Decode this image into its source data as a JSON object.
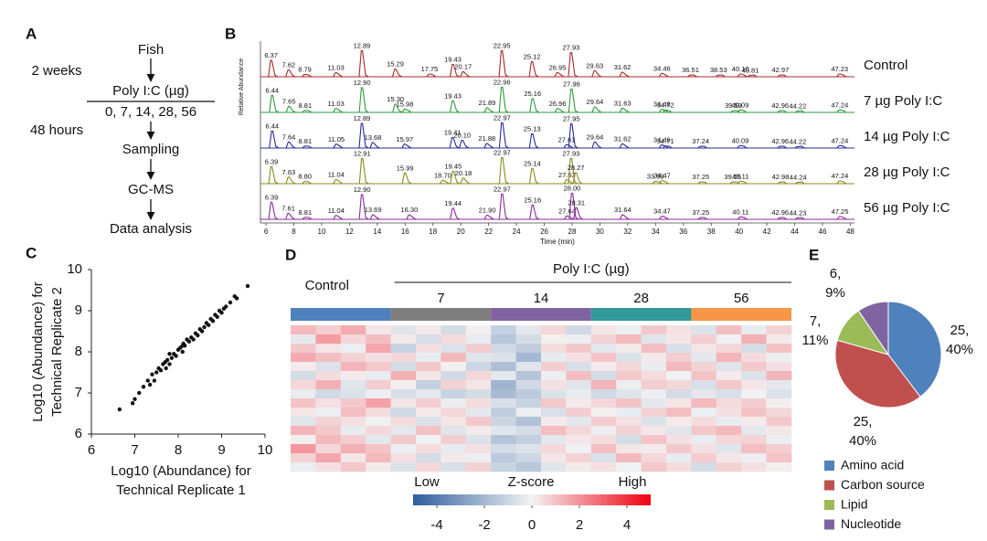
{
  "flow": {
    "panel": "A",
    "steps": [
      "Fish",
      "Poly I:C (µg)",
      "0, 7, 14, 28, 56",
      "Sampling",
      "GC-MS",
      "Data analysis"
    ],
    "durations": [
      "2 weeks",
      "48 hours"
    ]
  },
  "chart_data": [
    {
      "type": "chromatogram",
      "panel": "B",
      "xlabel": "Time (min)",
      "ylabel": "Relative Abundance",
      "xlim": [
        5.6,
        48.3
      ],
      "xticks": [
        6,
        8,
        10,
        12,
        14,
        16,
        18,
        20,
        22,
        24,
        26,
        28,
        30,
        32,
        34,
        36,
        38,
        40,
        42,
        44,
        46,
        48
      ],
      "ylim": [
        0,
        100
      ],
      "series": [
        {
          "name": "Control",
          "color": "#a8282a",
          "x": [
            6.37,
            7.62,
            8.79,
            11.03,
            12.89,
            15.29,
            17.75,
            19.43,
            20.17,
            22.95,
            25.12,
            26.95,
            27.93,
            29.63,
            31.62,
            34.46,
            36.51,
            38.53,
            40.1,
            40.81,
            42.97,
            47.23
          ],
          "x_labels": [
            "6.37",
            "7.62",
            "8.79",
            "11.03",
            "12.89",
            "15.29",
            "17.75",
            "19.43",
            "20.17",
            "22.95",
            "25.12",
            "26.95",
            "27.93",
            "29.63",
            "31.62",
            "34.46",
            "36.51",
            "38.53",
            "40.10",
            "40.81",
            "42.97",
            "47.23"
          ],
          "values": [
            60,
            25,
            8,
            15,
            95,
            28,
            10,
            45,
            18,
            95,
            55,
            15,
            88,
            22,
            16,
            12,
            6,
            6,
            10,
            5,
            6,
            10
          ]
        },
        {
          "name": "7 µg Poly I:C",
          "color": "#2e9a3e",
          "x": [
            6.44,
            7.65,
            8.81,
            11.03,
            12.9,
            15.3,
            15.98,
            19.43,
            21.89,
            22.96,
            25.16,
            26.96,
            27.96,
            29.64,
            31.63,
            34.46,
            34.72,
            39.59,
            40.09,
            42.96,
            44.22,
            47.24
          ],
          "x_labels": [
            "6.44",
            "7.65",
            "8.81",
            "11.03",
            "12.90",
            "15.30",
            "15.98",
            "19.43",
            "21.89",
            "22.96",
            "25.16",
            "26.96",
            "27.96",
            "29.64",
            "31.63",
            "34.46",
            "34.72",
            "39.59",
            "40.09",
            "42.96",
            "44.22",
            "47.24"
          ],
          "values": [
            62,
            22,
            7,
            14,
            90,
            30,
            12,
            42,
            16,
            92,
            50,
            14,
            85,
            20,
            15,
            11,
            8,
            6,
            9,
            6,
            5,
            9
          ]
        },
        {
          "name": "14 µg Poly I:C",
          "color": "#2a2a9a",
          "x": [
            6.44,
            7.64,
            8.81,
            11.05,
            12.89,
            13.68,
            15.97,
            19.41,
            20.1,
            21.88,
            22.97,
            25.13,
            27.61,
            27.95,
            29.64,
            31.62,
            34.46,
            34.71,
            37.24,
            40.09,
            42.96,
            44.22,
            47.24
          ],
          "x_labels": [
            "6.44",
            "7.64",
            "8.81",
            "11.05",
            "12.89",
            "13.68",
            "15.97",
            "19.41",
            "20.10",
            "21.88",
            "22.97",
            "25.13",
            "27.61",
            "27.95",
            "29.64",
            "31.62",
            "34.46",
            "34.71",
            "37.24",
            "40.09",
            "42.96",
            "44.22",
            "47.24"
          ],
          "values": [
            62,
            22,
            7,
            14,
            90,
            20,
            14,
            38,
            28,
            16,
            92,
            52,
            12,
            88,
            22,
            15,
            11,
            7,
            6,
            9,
            6,
            5,
            9
          ]
        },
        {
          "name": "28 µg Poly I:C",
          "color": "#8a8a1e",
          "x": [
            6.39,
            7.63,
            8.8,
            11.04,
            12.91,
            15.99,
            18.7,
            19.45,
            20.18,
            22.97,
            25.14,
            27.63,
            27.93,
            28.27,
            33.99,
            34.47,
            37.25,
            39.55,
            40.11,
            42.98,
            44.24,
            47.24
          ],
          "x_labels": [
            "6.39",
            "7.63",
            "8.80",
            "11.04",
            "12.91",
            "15.99",
            "18.70",
            "19.45",
            "20.18",
            "22.97",
            "25.14",
            "27.63",
            "27.93",
            "28.27",
            "33.99",
            "34.47",
            "37.25",
            "39.55",
            "40.11",
            "42.98",
            "44.24",
            "47.24"
          ],
          "values": [
            62,
            24,
            8,
            15,
            92,
            38,
            12,
            45,
            20,
            95,
            55,
            14,
            92,
            40,
            8,
            11,
            6,
            6,
            9,
            6,
            5,
            10
          ]
        },
        {
          "name": "56 µg Poly I:C",
          "color": "#8a2a9a",
          "x": [
            6.39,
            7.61,
            8.81,
            11.04,
            12.9,
            13.69,
            16.3,
            19.44,
            21.9,
            22.97,
            25.16,
            27.64,
            28.0,
            28.31,
            31.64,
            34.47,
            37.25,
            40.11,
            42.96,
            44.23,
            47.25
          ],
          "x_labels": [
            "6.39",
            "7.61",
            "8.81",
            "11.04",
            "12.90",
            "13.69",
            "16.30",
            "19.44",
            "21.90",
            "22.97",
            "25.16",
            "27.64",
            "28.00",
            "28.31",
            "31.64",
            "34.47",
            "37.25",
            "40.11",
            "42.96",
            "44.23",
            "47.25"
          ],
          "values": [
            62,
            22,
            7,
            14,
            90,
            16,
            16,
            40,
            15,
            92,
            52,
            12,
            95,
            42,
            16,
            11,
            6,
            9,
            6,
            5,
            10
          ]
        }
      ]
    },
    {
      "type": "scatter",
      "panel": "C",
      "xlabel": [
        "Log10 (Abundance) for",
        "Technical Replicate 1"
      ],
      "ylabel": [
        "Log10 (Abundance) for",
        "Technical Replicate 2"
      ],
      "xlim": [
        6,
        10
      ],
      "ylim": [
        6,
        10
      ],
      "xticks": [
        6,
        7,
        8,
        9,
        10
      ],
      "yticks": [
        6,
        7,
        8,
        9,
        10
      ],
      "color": "#111111",
      "x": [
        6.65,
        6.95,
        7,
        7.1,
        7.2,
        7.3,
        7.35,
        7.4,
        7.5,
        7.55,
        7.6,
        7.65,
        7.7,
        7.72,
        7.75,
        7.8,
        7.85,
        7.9,
        7.95,
        8,
        8.05,
        8.1,
        8.12,
        8.15,
        8.2,
        8.25,
        8.3,
        8.35,
        8.4,
        8.45,
        8.5,
        8.55,
        8.6,
        8.65,
        8.7,
        8.75,
        8.8,
        8.85,
        8.9,
        8.95,
        9,
        9.05,
        9.1,
        9.2,
        9.3,
        9.35,
        9.6,
        7.45,
        7.8,
        8.1
      ],
      "y": [
        6.6,
        6.75,
        6.85,
        7,
        7.15,
        7.3,
        7.2,
        7.45,
        7.5,
        7.6,
        7.55,
        7.7,
        7.75,
        7.6,
        7.8,
        7.7,
        7.85,
        7.95,
        7.9,
        8.05,
        8.1,
        8,
        8.2,
        8.15,
        8.3,
        8.25,
        8.35,
        8.3,
        8.45,
        8.4,
        8.55,
        8.5,
        8.6,
        8.7,
        8.65,
        8.8,
        8.75,
        8.9,
        8.85,
        9,
        8.95,
        9.05,
        9.1,
        9.2,
        9.35,
        9.3,
        9.6,
        7.3,
        7.95,
        8.15
      ]
    },
    {
      "type": "heatmap",
      "panel": "D",
      "group_title": "Poly I:C (µg)",
      "groups": [
        "Control",
        "7",
        "14",
        "28",
        "56"
      ],
      "group_colors": [
        "#4f81bd",
        "#7f7f7f",
        "#8064a2",
        "#31999a",
        "#f79646"
      ],
      "zlim": [
        -5,
        5
      ],
      "colors": [
        "#2e5e9e",
        "#f4f4f4",
        "#f00010"
      ],
      "colorbar": {
        "low_label": "Low",
        "title": "Z-score",
        "high_label": "High",
        "ticks": [
          -4,
          -2,
          0,
          2,
          4
        ]
      },
      "values": [
        [
          1.2,
          0.8,
          1.5,
          0.3,
          -0.5,
          0.2,
          -0.8,
          0.1,
          -1.2,
          -0.4,
          0.6,
          -0.9,
          0.3,
          -0.2,
          0.9,
          0.4,
          -0.6,
          1.1,
          -0.3,
          0.7
        ],
        [
          -0.4,
          1.8,
          0.6,
          1.1,
          0.2,
          -0.7,
          0.5,
          -0.3,
          -1.5,
          -0.8,
          0.1,
          -0.2,
          0.7,
          1.2,
          -0.5,
          0.3,
          0.8,
          -0.1,
          1.4,
          0.2
        ],
        [
          0.9,
          0.3,
          -0.2,
          1.6,
          -1.1,
          0.4,
          -0.6,
          0.8,
          -0.9,
          -1.3,
          0.5,
          0.9,
          -0.4,
          0.2,
          1.1,
          -0.7,
          0.3,
          0.6,
          -0.8,
          1.0
        ],
        [
          1.5,
          1.1,
          0.7,
          0.4,
          0.6,
          -0.3,
          1.2,
          -0.5,
          -0.6,
          -2.0,
          -0.3,
          0.4,
          1.0,
          -0.6,
          0.2,
          0.8,
          -0.4,
          1.3,
          0.5,
          -0.2
        ],
        [
          0.2,
          -0.6,
          1.3,
          0.9,
          -0.8,
          0.9,
          0.1,
          -1.0,
          -1.8,
          -0.5,
          0.8,
          -0.7,
          0.2,
          0.6,
          -0.3,
          1.2,
          0.7,
          -0.5,
          0.9,
          0.4
        ],
        [
          -0.8,
          0.5,
          0.2,
          -0.3,
          1.4,
          0.3,
          -0.9,
          0.6,
          -0.4,
          -1.6,
          -0.2,
          1.1,
          -0.8,
          0.9,
          0.5,
          -0.1,
          1.0,
          0.2,
          -0.6,
          1.3
        ],
        [
          0.6,
          1.4,
          -0.5,
          0.8,
          0.1,
          -1.2,
          0.7,
          0.3,
          -2.1,
          -0.9,
          0.4,
          -0.5,
          1.3,
          -0.2,
          0.8,
          0.6,
          -0.7,
          0.9,
          0.3,
          -0.4
        ],
        [
          -0.3,
          -0.9,
          -0.6,
          -0.2,
          -0.7,
          -0.4,
          -1.1,
          -0.8,
          -1.9,
          -1.4,
          -0.6,
          -0.3,
          -0.9,
          -0.5,
          -0.2,
          -0.8,
          -0.4,
          -0.7,
          -0.1,
          -0.6
        ],
        [
          1.0,
          0.4,
          0.9,
          1.7,
          0.3,
          0.8,
          -0.2,
          0.5,
          -0.7,
          -1.1,
          0.9,
          0.2,
          0.6,
          1.0,
          -0.4,
          0.3,
          1.2,
          0.5,
          0.8,
          0.1
        ],
        [
          0.3,
          -0.2,
          1.1,
          0.5,
          -0.9,
          0.2,
          0.6,
          -0.4,
          -1.3,
          -0.2,
          -0.7,
          0.8,
          0.1,
          -0.3,
          0.7,
          1.1,
          -0.2,
          0.4,
          1.0,
          0.6
        ],
        [
          -0.5,
          0.7,
          0.4,
          -0.1,
          0.5,
          -0.6,
          0.3,
          0.9,
          -1.0,
          -1.7,
          0.2,
          -0.4,
          0.8,
          0.4,
          -0.6,
          0.2,
          0.5,
          -0.3,
          0.2,
          0.9
        ],
        [
          1.3,
          0.9,
          -0.3,
          0.6,
          -0.4,
          1.0,
          -0.5,
          0.2,
          -0.5,
          -0.8,
          1.1,
          0.6,
          -0.2,
          0.7,
          0.3,
          -0.5,
          0.9,
          1.2,
          -0.4,
          0.3
        ],
        [
          0.1,
          1.2,
          0.8,
          -0.4,
          0.9,
          -0.1,
          0.8,
          -0.6,
          -1.6,
          -1.2,
          -0.4,
          0.3,
          0.5,
          -0.8,
          1.0,
          0.4,
          -0.3,
          0.6,
          0.7,
          -0.2
        ],
        [
          1.9,
          0.6,
          1.4,
          1.0,
          -0.2,
          0.5,
          -0.3,
          0.4,
          -0.8,
          -0.6,
          0.6,
          -0.1,
          1.1,
          0.3,
          0.2,
          0.9,
          0.4,
          -0.5,
          1.1,
          0.8
        ],
        [
          0.7,
          1.6,
          0.3,
          1.2,
          0.4,
          -0.8,
          0.2,
          -0.2,
          -1.4,
          -1.0,
          0.3,
          0.7,
          -0.6,
          1.2,
          0.6,
          -0.3,
          0.8,
          0.3,
          -0.2,
          1.0
        ],
        [
          -0.2,
          0.4,
          0.9,
          0.2,
          -0.6,
          0.6,
          -0.7,
          0.7,
          -1.1,
          -1.5,
          -0.5,
          0.2,
          0.4,
          -0.1,
          0.9,
          0.5,
          -0.8,
          0.7,
          0.4,
          0.1
        ]
      ]
    },
    {
      "type": "pie",
      "panel": "E",
      "categories": [
        "Amino acid",
        "Carbon source",
        "Lipid",
        "Nucleotide"
      ],
      "values": [
        25,
        25,
        7,
        6
      ],
      "value_labels": [
        [
          "25,",
          "40%"
        ],
        [
          "25,",
          "40%"
        ],
        [
          "7,",
          "11%"
        ],
        [
          "6,",
          "9%"
        ]
      ],
      "colors": [
        "#4f81bd",
        "#c0504d",
        "#9bbb59",
        "#8064a2"
      ]
    }
  ]
}
